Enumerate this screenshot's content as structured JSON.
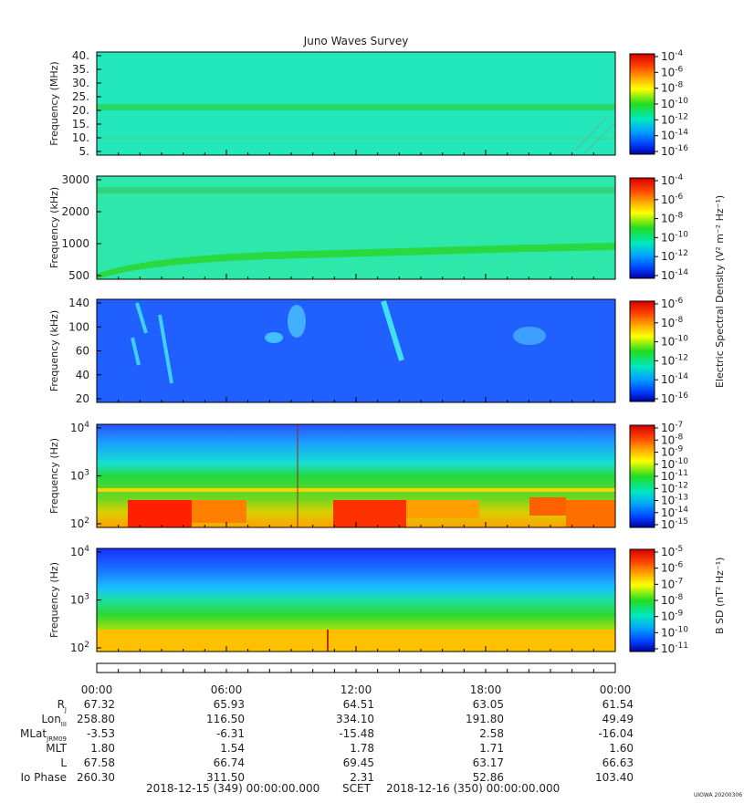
{
  "title": "Juno Waves Survey",
  "chart_data": {
    "type": "heatmap",
    "title": "Juno Waves Survey",
    "panels": [
      {
        "ylabel": "Frequency (MHz)",
        "yticks": [
          "40.",
          "35.",
          "30.",
          "25.",
          "20.",
          "15.",
          "10.",
          "5."
        ],
        "cbar_ticks": [
          "-4",
          "-6",
          "-8",
          "-10",
          "-12",
          "-14",
          "-16"
        ],
        "cbar_label": ""
      },
      {
        "ylabel": "Frequency (kHz)",
        "yticks": [
          "3000",
          "2000",
          "1000",
          "500"
        ],
        "cbar_ticks": [
          "-4",
          "-6",
          "-8",
          "-10",
          "-12",
          "-14"
        ],
        "cbar_label": "Electric Spectral Density (V² m⁻² Hz⁻¹)"
      },
      {
        "ylabel": "Frequency (kHz)",
        "yticks": [
          "140",
          "100",
          "60",
          "40",
          "20"
        ],
        "cbar_ticks": [
          "-6",
          "-8",
          "-10",
          "-12",
          "-14",
          "-16"
        ],
        "cbar_label": ""
      },
      {
        "ylabel": "Frequency (Hz)",
        "yticks": [
          "4",
          "3",
          "2"
        ],
        "cbar_ticks": [
          "-7",
          "-8",
          "-9",
          "-10",
          "-11",
          "-12",
          "-13",
          "-14",
          "-15"
        ],
        "cbar_label": ""
      },
      {
        "ylabel": "Frequency (Hz)",
        "yticks": [
          "4",
          "3",
          "2"
        ],
        "cbar_ticks": [
          "-5",
          "-6",
          "-7",
          "-8",
          "-9",
          "-10",
          "-11"
        ],
        "cbar_label": "B SD (nT² Hz⁻¹)"
      }
    ],
    "time_ticks": [
      "00:00",
      "06:00",
      "12:00",
      "18:00",
      "00:00"
    ],
    "ephemeris": [
      {
        "label": "R",
        "sub": "J",
        "values": [
          "67.32",
          "65.93",
          "64.51",
          "63.05",
          "61.54"
        ]
      },
      {
        "label": "Lon",
        "sub": "III",
        "values": [
          "258.80",
          "116.50",
          "334.10",
          "191.80",
          "49.49"
        ]
      },
      {
        "label": "MLat",
        "sub": "JRM09",
        "values": [
          "-3.53",
          "-6.31",
          "-15.48",
          "2.58",
          "-16.04"
        ]
      },
      {
        "label": "MLT",
        "sub": "",
        "values": [
          "1.80",
          "1.54",
          "1.78",
          "1.71",
          "1.60"
        ]
      },
      {
        "label": "L",
        "sub": "",
        "values": [
          "67.58",
          "66.74",
          "69.45",
          "63.17",
          "66.63"
        ]
      },
      {
        "label": "Io Phase",
        "sub": "",
        "values": [
          "260.30",
          "311.50",
          "2.31",
          "52.86",
          "103.40"
        ]
      }
    ],
    "footer": {
      "start": "2018-12-15 (349) 00:00:00.000",
      "scet": "SCET",
      "end": "2018-12-16 (350) 00:00:00.000",
      "stamp": "UIOWA 20200306"
    },
    "colors": {
      "background_panel_1": "#1fe6c0",
      "background_panel_2": "#2de8a9",
      "background_panel_3": "#1f5fff",
      "band_green": "#1fd83a",
      "high_red": "#ff1a00"
    }
  }
}
